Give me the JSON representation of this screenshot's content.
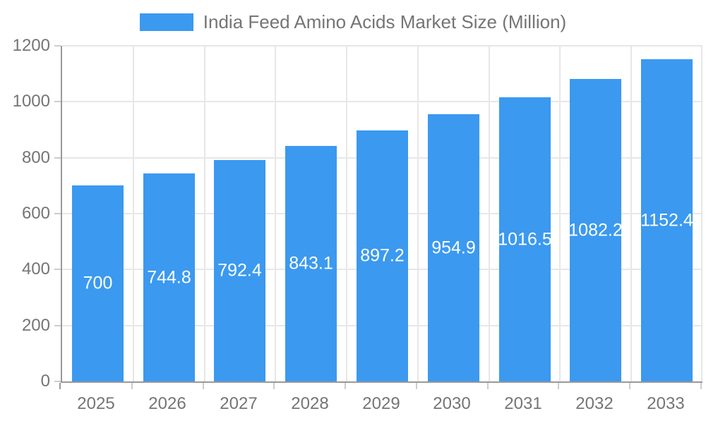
{
  "chart_data": {
    "type": "bar",
    "title": "India Feed Amino Acids Market Size (Million)",
    "categories": [
      "2025",
      "2026",
      "2027",
      "2028",
      "2029",
      "2030",
      "2031",
      "2032",
      "2033"
    ],
    "values": [
      700,
      744.8,
      792.4,
      843.1,
      897.2,
      954.9,
      1016.5,
      1082.2,
      1152.4
    ],
    "value_labels": [
      "700",
      "744.8",
      "792.4",
      "843.1",
      "897.2",
      "954.9",
      "1016.5",
      "1082.2",
      "1152.4"
    ],
    "xlabel": "",
    "ylabel": "",
    "ylim": [
      0,
      1200
    ],
    "yticks": [
      0,
      200,
      400,
      600,
      800,
      1000,
      1200
    ],
    "grid": true,
    "legend_position": "top-center",
    "colors": {
      "bar": "#3b99f0",
      "grid": "#e7e7e7",
      "axis": "#999999",
      "tick": "#cccccc",
      "axis_text": "#757575",
      "value_label": "#ffffff",
      "background": "#ffffff"
    }
  }
}
